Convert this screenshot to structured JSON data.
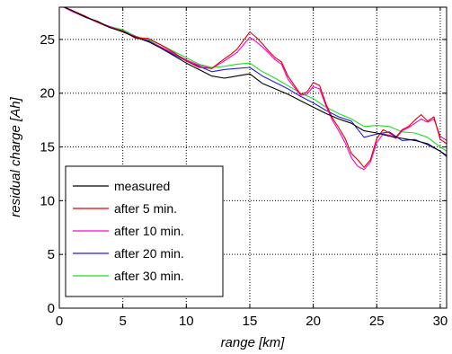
{
  "chart_data": {
    "type": "line",
    "xlabel": "range [km]",
    "ylabel": "residual charge [Ah]",
    "xlim": [
      0,
      30.5
    ],
    "ylim": [
      0,
      28
    ],
    "xticks": [
      0,
      5,
      10,
      15,
      20,
      25,
      30
    ],
    "yticks": [
      0,
      5,
      10,
      15,
      20,
      25
    ],
    "grid": true,
    "legend_position": "bottom-left",
    "series": [
      {
        "name": "measured",
        "color": "#000000",
        "x": [
          0,
          1,
          2,
          3,
          4,
          5,
          6,
          7,
          8,
          9,
          10,
          11,
          12,
          13,
          14,
          15,
          16,
          17,
          18,
          19,
          20,
          21,
          22,
          23,
          24,
          25,
          26,
          27,
          28,
          29,
          30,
          30.5
        ],
        "y": [
          28.2,
          27.7,
          27.1,
          26.7,
          26.1,
          25.7,
          25.2,
          24.8,
          24.2,
          23.5,
          22.8,
          22.2,
          21.6,
          21.4,
          21.6,
          21.8,
          20.9,
          20.4,
          19.9,
          19.3,
          18.7,
          18.1,
          17.6,
          17.2,
          16.5,
          16.3,
          16.0,
          15.8,
          15.6,
          15.3,
          14.6,
          14.2
        ]
      },
      {
        "name": "after 5 min.",
        "color": "#e00000",
        "x": [
          0,
          1,
          2,
          3,
          4,
          5,
          6,
          7,
          8,
          9,
          10,
          11,
          12,
          13,
          13.5,
          14,
          14.5,
          15,
          15.5,
          16,
          16.5,
          17,
          17.5,
          18,
          19,
          19.5,
          20,
          20.5,
          21,
          21.5,
          22,
          22.5,
          23,
          23.5,
          24,
          24.5,
          25,
          25.5,
          26,
          26.5,
          27,
          27.5,
          28,
          28.5,
          29,
          29.5,
          30,
          30.5
        ],
        "y": [
          28.2,
          27.7,
          27.2,
          26.6,
          26.1,
          25.8,
          25.1,
          25.1,
          24.5,
          23.8,
          23.0,
          22.4,
          22.3,
          23.2,
          23.6,
          24.1,
          24.9,
          25.7,
          25.2,
          24.6,
          23.9,
          23.3,
          22.9,
          21.6,
          19.9,
          20.1,
          21.0,
          20.7,
          19.0,
          17.7,
          16.8,
          15.8,
          14.4,
          13.8,
          13.1,
          13.8,
          15.8,
          16.6,
          16.3,
          15.9,
          16.6,
          16.9,
          17.5,
          18.0,
          17.4,
          17.8,
          15.7,
          15.3
        ]
      },
      {
        "name": "after 10 min.",
        "color": "#ff00cc",
        "x": [
          0,
          1,
          2,
          3,
          4,
          5,
          6,
          7,
          8,
          9,
          10,
          11,
          12,
          13,
          13.5,
          14,
          14.5,
          15,
          15.5,
          16,
          16.5,
          17,
          17.5,
          18,
          19,
          19.5,
          20,
          20.5,
          21,
          21.5,
          22,
          22.5,
          23,
          23.5,
          24,
          24.5,
          25,
          25.5,
          26,
          26.5,
          27,
          27.5,
          28,
          28.5,
          29,
          29.5,
          30,
          30.5
        ],
        "y": [
          28.2,
          27.6,
          27.1,
          26.6,
          26.2,
          25.7,
          25.3,
          24.8,
          24.3,
          23.7,
          23.1,
          22.6,
          22.3,
          23.0,
          23.4,
          23.8,
          24.5,
          25.2,
          24.8,
          24.3,
          23.7,
          23.1,
          22.7,
          21.3,
          19.8,
          19.9,
          20.6,
          20.4,
          18.8,
          17.5,
          16.5,
          15.4,
          14.0,
          13.2,
          12.9,
          13.6,
          15.4,
          16.2,
          16.1,
          15.8,
          16.5,
          16.8,
          17.2,
          17.6,
          17.3,
          17.6,
          16.0,
          15.6
        ]
      },
      {
        "name": "after 20 min.",
        "color": "#1f1fe0",
        "x": [
          0,
          1,
          2,
          3,
          4,
          5,
          6,
          7,
          8,
          9,
          10,
          11,
          12,
          13,
          14,
          15,
          16,
          17,
          18,
          19,
          20,
          21,
          22,
          23,
          24,
          25,
          26,
          27,
          28,
          29,
          30,
          30.5
        ],
        "y": [
          28.2,
          27.7,
          27.1,
          26.6,
          26.1,
          25.8,
          25.2,
          24.9,
          24.3,
          23.6,
          23.0,
          22.5,
          22.0,
          22.2,
          22.3,
          22.4,
          21.6,
          21.0,
          20.4,
          19.7,
          19.1,
          18.4,
          17.8,
          17.4,
          15.9,
          16.2,
          16.4,
          15.6,
          15.7,
          15.2,
          14.6,
          14.1
        ]
      },
      {
        "name": "after 30 min.",
        "color": "#22dd22",
        "x": [
          0,
          1,
          2,
          3,
          4,
          5,
          6,
          7,
          8,
          9,
          10,
          11,
          12,
          13,
          14,
          15,
          16,
          17,
          18,
          19,
          20,
          21,
          22,
          23,
          24,
          25,
          26,
          27,
          28,
          29,
          30,
          30.5
        ],
        "y": [
          28.2,
          27.7,
          27.1,
          26.6,
          26.2,
          25.9,
          25.3,
          25.0,
          24.5,
          23.9,
          23.3,
          22.7,
          22.4,
          22.5,
          22.7,
          22.8,
          22.0,
          21.4,
          20.7,
          20.0,
          19.5,
          18.7,
          18.1,
          17.6,
          16.9,
          17.0,
          16.9,
          16.4,
          16.3,
          15.9,
          15.0,
          14.6
        ]
      }
    ]
  }
}
